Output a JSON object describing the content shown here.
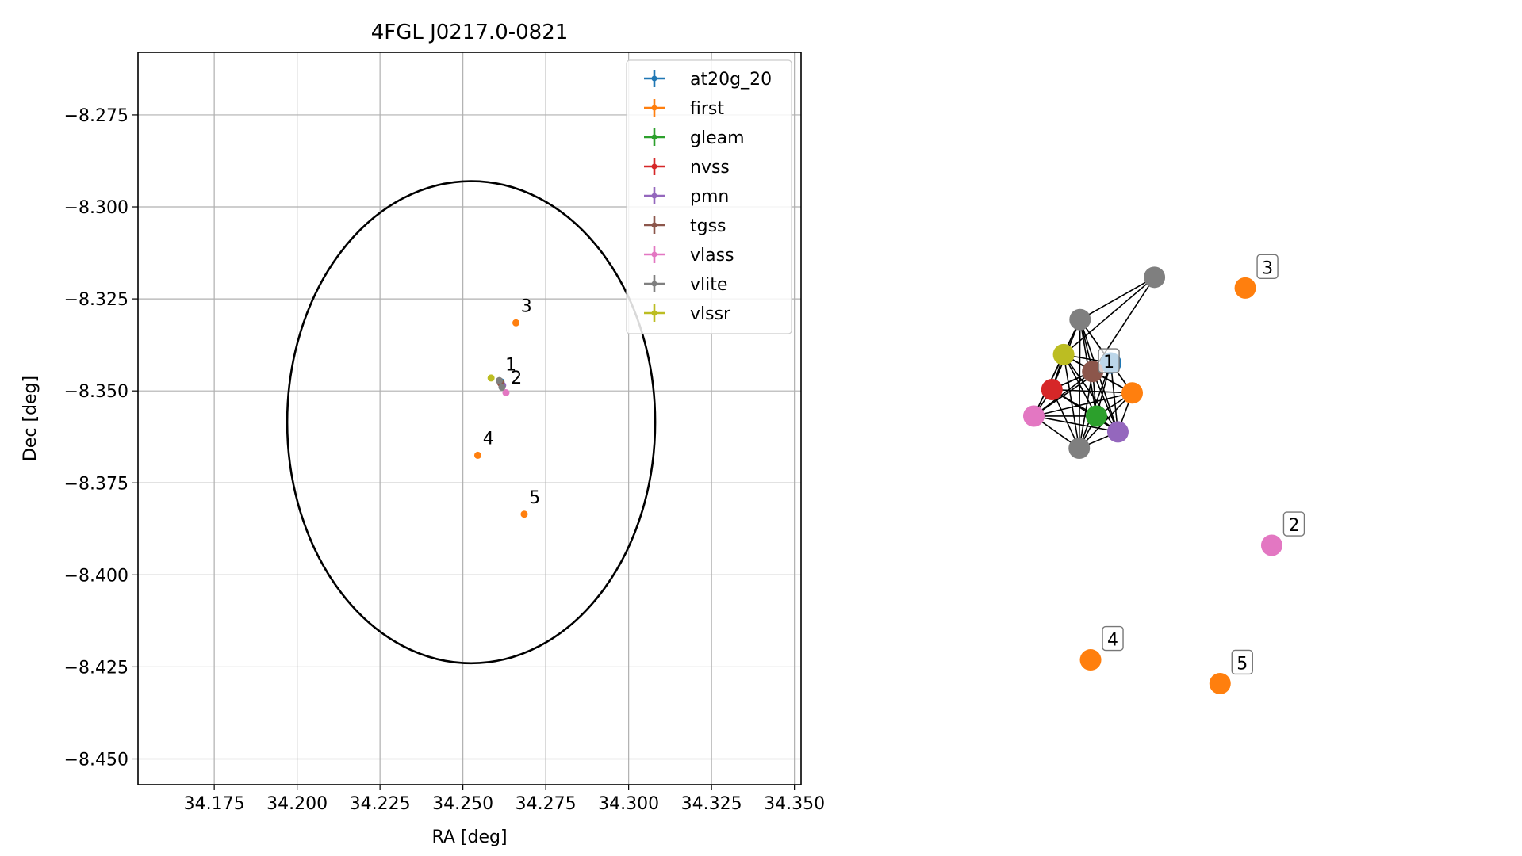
{
  "chart_data": [
    {
      "type": "scatter",
      "title": "4FGL J0217.0-0821",
      "xlabel": "RA [deg]",
      "ylabel": "Dec [deg]",
      "xlim": [
        34.152,
        34.352
      ],
      "ylim": [
        -8.457,
        -8.258
      ],
      "grid": true,
      "legend_position": "top-right",
      "x_ticks": [
        34.175,
        34.2,
        34.225,
        34.25,
        34.275,
        34.3,
        34.325,
        34.35
      ],
      "x_tick_labels": [
        "34.175",
        "34.200",
        "34.225",
        "34.250",
        "34.275",
        "34.300",
        "34.325",
        "34.350"
      ],
      "y_ticks": [
        -8.275,
        -8.3,
        -8.325,
        -8.35,
        -8.375,
        -8.4,
        -8.425,
        -8.45
      ],
      "y_tick_labels": [
        "−8.275",
        "−8.300",
        "−8.325",
        "−8.350",
        "−8.375",
        "−8.400",
        "−8.425",
        "−8.450"
      ],
      "ellipse": {
        "center": [
          34.2525,
          -8.3585
        ],
        "semi_axis_ra": 0.0555,
        "semi_axis_dec": 0.0655
      },
      "series": [
        {
          "name": "at20g_20",
          "color": "#1f77b4",
          "points": [
            [
              34.2615,
              -8.3475
            ]
          ]
        },
        {
          "name": "first",
          "color": "#ff7f0e",
          "points": [
            [
              34.266,
              -8.3315
            ],
            [
              34.2545,
              -8.3675
            ],
            [
              34.2685,
              -8.3835
            ]
          ]
        },
        {
          "name": "gleam",
          "color": "#2ca02c",
          "points": [
            [
              34.2615,
              -8.3478
            ]
          ]
        },
        {
          "name": "nvss",
          "color": "#d62728",
          "points": [
            [
              34.2615,
              -8.348
            ]
          ]
        },
        {
          "name": "pmn",
          "color": "#9467bd",
          "points": [
            [
              34.262,
              -8.3485
            ]
          ]
        },
        {
          "name": "tgss",
          "color": "#8c564b",
          "points": [
            [
              34.2613,
              -8.3478
            ]
          ]
        },
        {
          "name": "vlass",
          "color": "#e377c2",
          "points": [
            [
              34.263,
              -8.3505
            ]
          ]
        },
        {
          "name": "vlite",
          "color": "#7f7f7f",
          "points": [
            [
              34.261,
              -8.3472
            ],
            [
              34.2618,
              -8.349
            ]
          ]
        },
        {
          "name": "vlssr",
          "color": "#bcbd22",
          "points": [
            [
              34.2585,
              -8.3465
            ]
          ]
        }
      ],
      "annotations": [
        {
          "text": "1",
          "x": 34.2628,
          "y": -8.3445
        },
        {
          "text": "2",
          "x": 34.2645,
          "y": -8.348
        },
        {
          "text": "3",
          "x": 34.2675,
          "y": -8.3285
        },
        {
          "text": "4",
          "x": 34.256,
          "y": -8.3645
        },
        {
          "text": "5",
          "x": 34.27,
          "y": -8.3805
        }
      ]
    },
    {
      "type": "scatter",
      "subtype": "network-graph",
      "axes": "off",
      "xlim": [
        0,
        100
      ],
      "ylim": [
        0,
        100
      ],
      "nodes": [
        {
          "id": "n-vlite-a",
          "color": "#7f7f7f",
          "x": 30.3,
          "y": 85.7
        },
        {
          "id": "n-vlite-b",
          "color": "#7f7f7f",
          "x": 12.6,
          "y": 78.2
        },
        {
          "id": "n-vlssr",
          "color": "#bcbd22",
          "x": 8.7,
          "y": 72.0
        },
        {
          "id": "n-at20g",
          "color": "#1f77b4",
          "x": 19.9,
          "y": 70.5
        },
        {
          "id": "n-tgss",
          "color": "#8c564b",
          "x": 15.6,
          "y": 69.0
        },
        {
          "id": "n-nvss",
          "color": "#d62728",
          "x": 5.9,
          "y": 65.8
        },
        {
          "id": "n-first-a",
          "color": "#ff7f0e",
          "x": 25.0,
          "y": 65.2
        },
        {
          "id": "n-vlass-a",
          "color": "#e377c2",
          "x": 1.6,
          "y": 61.1
        },
        {
          "id": "n-gleam",
          "color": "#2ca02c",
          "x": 16.5,
          "y": 61.1
        },
        {
          "id": "n-pmn",
          "color": "#9467bd",
          "x": 21.6,
          "y": 58.3
        },
        {
          "id": "n-vlite-c",
          "color": "#7f7f7f",
          "x": 12.4,
          "y": 55.4
        },
        {
          "id": "n-first-3",
          "color": "#ff7f0e",
          "x": 51.9,
          "y": 83.8,
          "label": "3"
        },
        {
          "id": "n-vlass-2",
          "color": "#e377c2",
          "x": 58.2,
          "y": 38.2,
          "label": "2"
        },
        {
          "id": "n-first-4",
          "color": "#ff7f0e",
          "x": 15.1,
          "y": 17.9,
          "label": "4"
        },
        {
          "id": "n-first-5",
          "color": "#ff7f0e",
          "x": 45.9,
          "y": 13.7,
          "label": "5"
        }
      ],
      "cluster_label": "1",
      "cluster_label_position": [
        17.0,
        70.5
      ],
      "edges": [
        [
          "n-vlite-a",
          "n-vlite-b"
        ],
        [
          "n-vlite-a",
          "n-vlssr"
        ],
        [
          "n-vlite-a",
          "n-tgss"
        ],
        [
          "n-vlite-b",
          "n-vlssr"
        ],
        [
          "n-vlite-b",
          "n-at20g"
        ],
        [
          "n-vlite-b",
          "n-tgss"
        ],
        [
          "n-vlite-b",
          "n-nvss"
        ],
        [
          "n-vlite-b",
          "n-first-a"
        ],
        [
          "n-vlite-b",
          "n-vlass-a"
        ],
        [
          "n-vlite-b",
          "n-gleam"
        ],
        [
          "n-vlite-b",
          "n-pmn"
        ],
        [
          "n-vlite-b",
          "n-vlite-c"
        ],
        [
          "n-vlssr",
          "n-at20g"
        ],
        [
          "n-vlssr",
          "n-tgss"
        ],
        [
          "n-vlssr",
          "n-nvss"
        ],
        [
          "n-vlssr",
          "n-first-a"
        ],
        [
          "n-vlssr",
          "n-vlass-a"
        ],
        [
          "n-vlssr",
          "n-gleam"
        ],
        [
          "n-vlssr",
          "n-pmn"
        ],
        [
          "n-vlssr",
          "n-vlite-c"
        ],
        [
          "n-at20g",
          "n-tgss"
        ],
        [
          "n-at20g",
          "n-nvss"
        ],
        [
          "n-at20g",
          "n-first-a"
        ],
        [
          "n-at20g",
          "n-vlass-a"
        ],
        [
          "n-at20g",
          "n-gleam"
        ],
        [
          "n-at20g",
          "n-pmn"
        ],
        [
          "n-at20g",
          "n-vlite-c"
        ],
        [
          "n-tgss",
          "n-nvss"
        ],
        [
          "n-tgss",
          "n-first-a"
        ],
        [
          "n-tgss",
          "n-vlass-a"
        ],
        [
          "n-tgss",
          "n-gleam"
        ],
        [
          "n-tgss",
          "n-pmn"
        ],
        [
          "n-tgss",
          "n-vlite-c"
        ],
        [
          "n-nvss",
          "n-first-a"
        ],
        [
          "n-nvss",
          "n-vlass-a"
        ],
        [
          "n-nvss",
          "n-gleam"
        ],
        [
          "n-nvss",
          "n-pmn"
        ],
        [
          "n-nvss",
          "n-vlite-c"
        ],
        [
          "n-first-a",
          "n-vlass-a"
        ],
        [
          "n-first-a",
          "n-gleam"
        ],
        [
          "n-first-a",
          "n-pmn"
        ],
        [
          "n-first-a",
          "n-vlite-c"
        ],
        [
          "n-vlass-a",
          "n-gleam"
        ],
        [
          "n-vlass-a",
          "n-pmn"
        ],
        [
          "n-vlass-a",
          "n-vlite-c"
        ],
        [
          "n-gleam",
          "n-pmn"
        ],
        [
          "n-gleam",
          "n-vlite-c"
        ],
        [
          "n-pmn",
          "n-vlite-c"
        ]
      ]
    }
  ]
}
